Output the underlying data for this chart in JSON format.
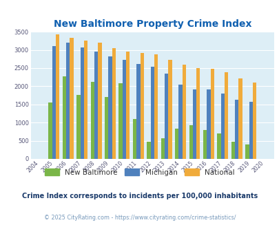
{
  "title": "New Baltimore Property Crime Index",
  "years": [
    2004,
    2005,
    2006,
    2007,
    2008,
    2009,
    2010,
    2011,
    2012,
    2013,
    2014,
    2015,
    2016,
    2017,
    2018,
    2019,
    2020
  ],
  "new_baltimore": [
    0,
    1550,
    2270,
    1760,
    2130,
    1700,
    2090,
    1090,
    470,
    560,
    840,
    920,
    790,
    700,
    470,
    400,
    0
  ],
  "michigan": [
    0,
    3100,
    3200,
    3060,
    2950,
    2830,
    2730,
    2620,
    2540,
    2340,
    2050,
    1910,
    1920,
    1800,
    1630,
    1580,
    0
  ],
  "national": [
    0,
    3430,
    3330,
    3260,
    3200,
    3050,
    2950,
    2910,
    2870,
    2730,
    2600,
    2500,
    2480,
    2380,
    2210,
    2110,
    0
  ],
  "color_new_baltimore": "#7ab648",
  "color_michigan": "#4f81bd",
  "color_national": "#f0ab3b",
  "ylim": [
    0,
    3500
  ],
  "yticks": [
    0,
    500,
    1000,
    1500,
    2000,
    2500,
    3000,
    3500
  ],
  "legend_labels": [
    "New Baltimore",
    "Michigan",
    "National"
  ],
  "subtitle": "Crime Index corresponds to incidents per 100,000 inhabitants",
  "footer": "© 2025 CityRating.com - https://www.cityrating.com/crime-statistics/",
  "bg_color": "#ddeef6",
  "title_color": "#1060b0",
  "subtitle_color": "#1a3a6a",
  "footer_color": "#7799bb"
}
